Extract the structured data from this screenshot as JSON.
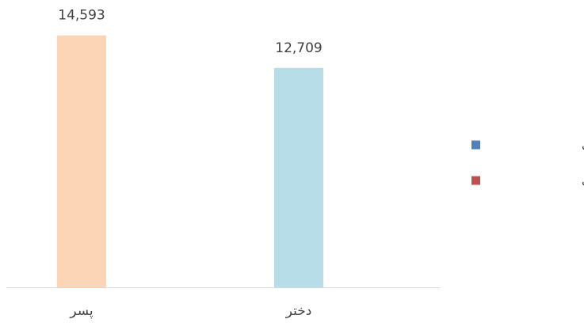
{
  "chart_data": {
    "type": "bar",
    "categories": [
      "پسر",
      "دختر"
    ],
    "values": [
      14593,
      12709
    ],
    "value_labels": [
      "14,593",
      "12,709"
    ],
    "colors": [
      "#fbd5b5",
      "#b7dde8"
    ],
    "ylim": [
      0,
      16000
    ],
    "legend": [
      {
        "name": "تعلیمات عمومی",
        "color": "#4f81bd"
      },
      {
        "name": "سواد آموزی",
        "color": "#c0504d"
      }
    ]
  }
}
